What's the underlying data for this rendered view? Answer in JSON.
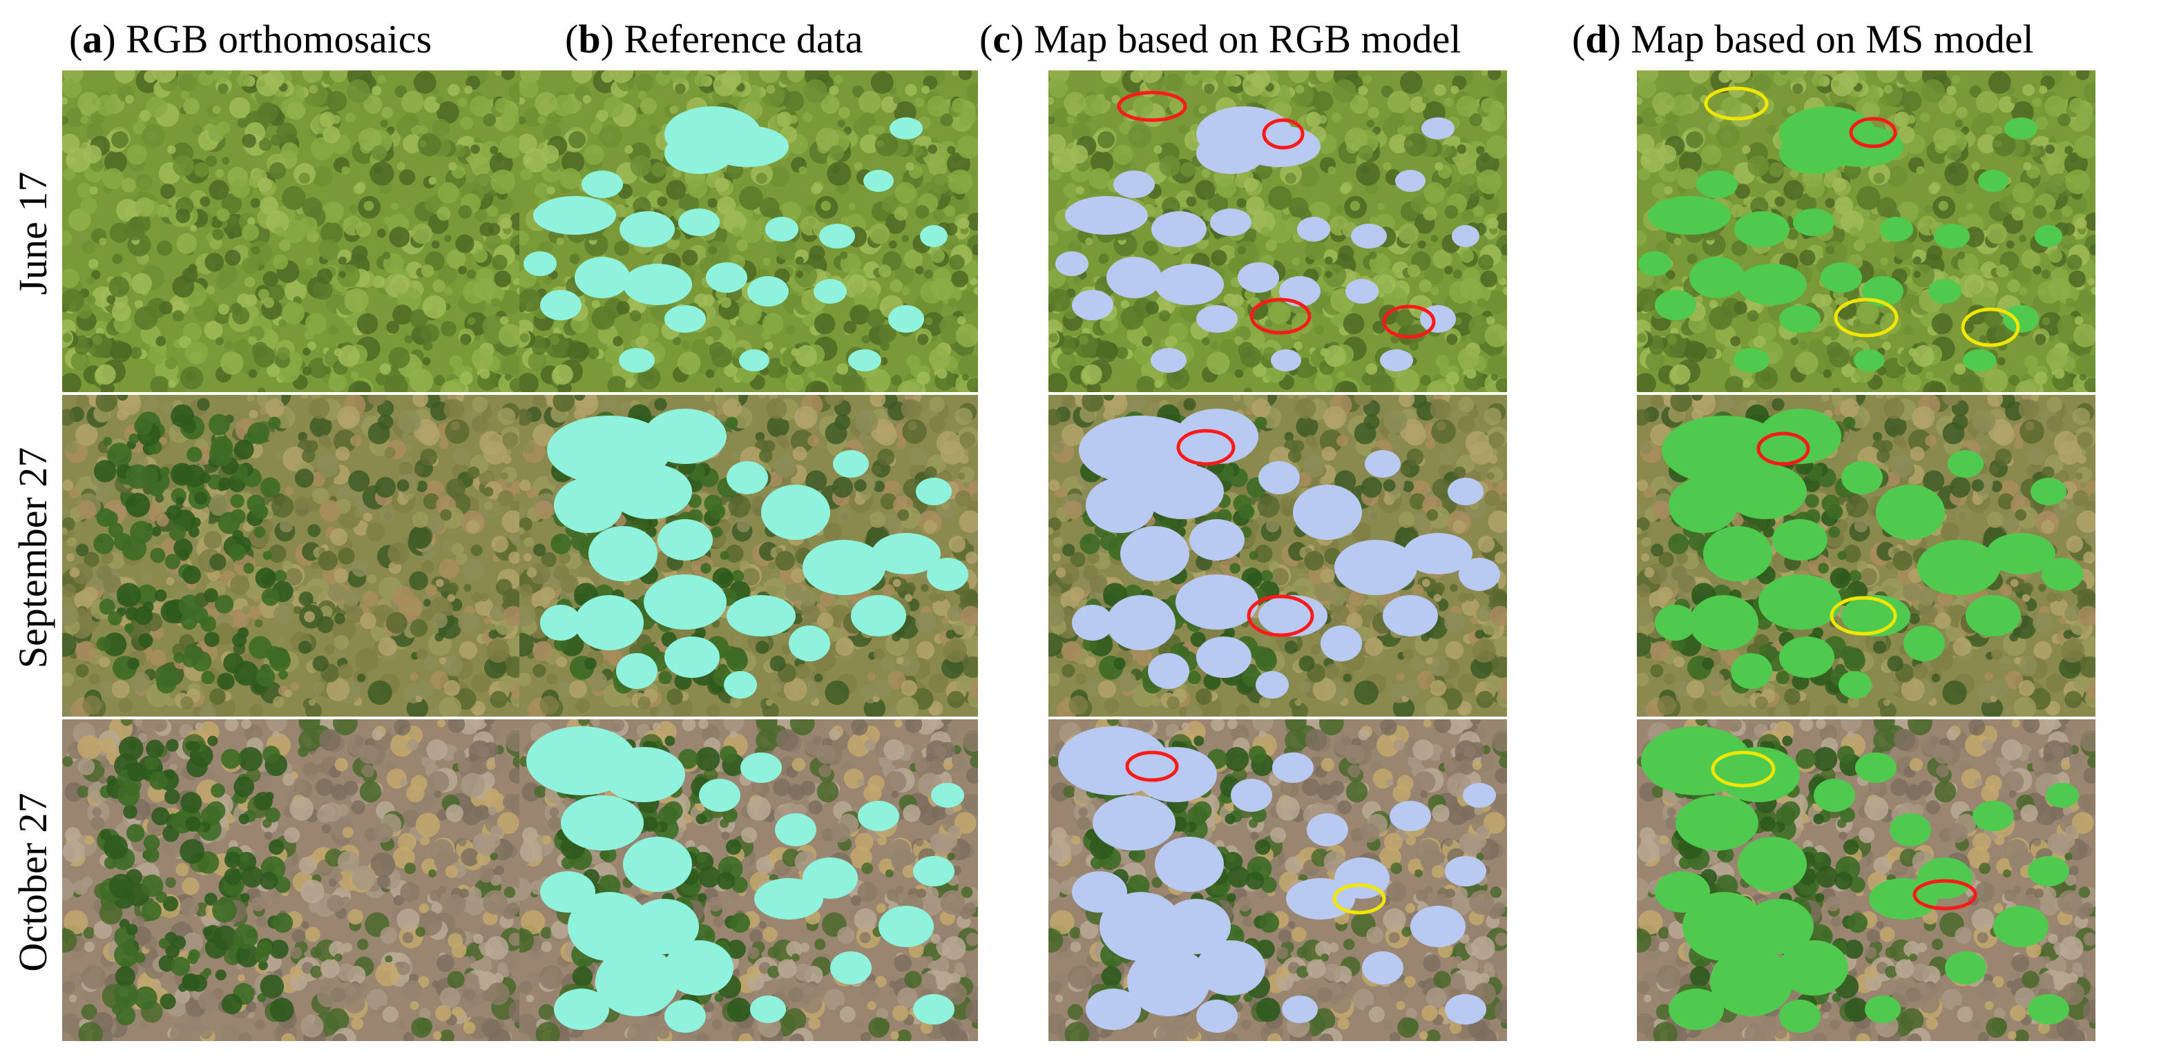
{
  "panels": {
    "a": {
      "letter": "a",
      "title": "RGB orthomosaics"
    },
    "b": {
      "letter": "b",
      "title": "Reference data"
    },
    "c": {
      "letter": "c",
      "title": "Map based on RGB model"
    },
    "d": {
      "letter": "d",
      "title": "Map based on MS model"
    }
  },
  "rows": [
    {
      "label": "June 17"
    },
    {
      "label": "September 27"
    },
    {
      "label": "October 27"
    }
  ],
  "colors": {
    "reference_overlay": "#8ff2dc",
    "rgb_model_overlay": "#b8c9f2",
    "ms_model_overlay": "#4fca4f",
    "error_circle_red": "#ff1a1a",
    "error_circle_yellow": "#f0e600",
    "june_canopy": "#7a9a3a",
    "september_canopy": "#8a8a4e",
    "october_canopy": "#9a8670"
  }
}
